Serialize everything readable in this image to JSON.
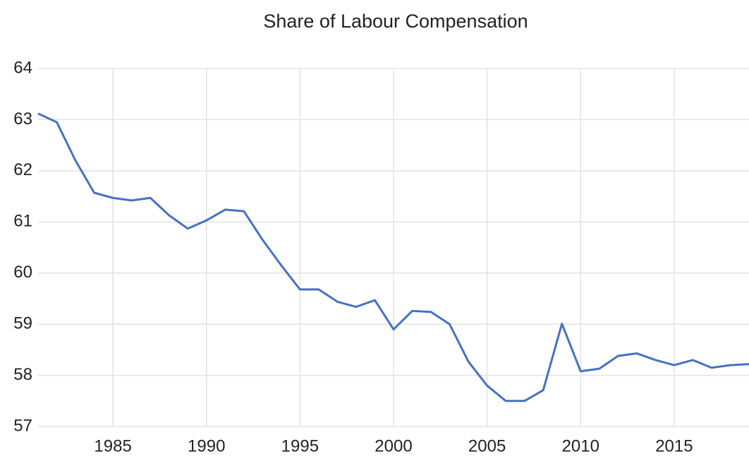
{
  "chart_data": {
    "type": "line",
    "title": "Share of Labour Compensation",
    "x": [
      1981,
      1982,
      1983,
      1984,
      1985,
      1986,
      1987,
      1988,
      1989,
      1990,
      1991,
      1992,
      1993,
      1994,
      1995,
      1996,
      1997,
      1998,
      1999,
      2000,
      2001,
      2002,
      2003,
      2004,
      2005,
      2006,
      2007,
      2008,
      2009,
      2010,
      2011,
      2012,
      2013,
      2014,
      2015,
      2016,
      2017,
      2018,
      2019
    ],
    "series": [
      {
        "name": "Share of Labour Compensation",
        "color": "#4472c4",
        "values": [
          63.12,
          62.95,
          62.2,
          61.57,
          61.47,
          61.42,
          61.47,
          61.13,
          60.87,
          61.03,
          61.24,
          61.21,
          60.65,
          60.15,
          59.68,
          59.68,
          59.44,
          59.34,
          59.47,
          58.9,
          59.26,
          59.24,
          59.0,
          58.27,
          57.8,
          57.5,
          57.5,
          57.71,
          59.01,
          58.08,
          58.13,
          58.38,
          58.43,
          58.3,
          58.2,
          58.3,
          58.15,
          58.2,
          58.22
        ]
      }
    ],
    "xlim": [
      1981,
      2019
    ],
    "xticks": [
      1985,
      1990,
      1995,
      2000,
      2005,
      2010,
      2015
    ],
    "ylim": [
      57,
      64
    ],
    "yticks": [
      57,
      58,
      59,
      60,
      61,
      62,
      63,
      64
    ],
    "grid": true
  }
}
